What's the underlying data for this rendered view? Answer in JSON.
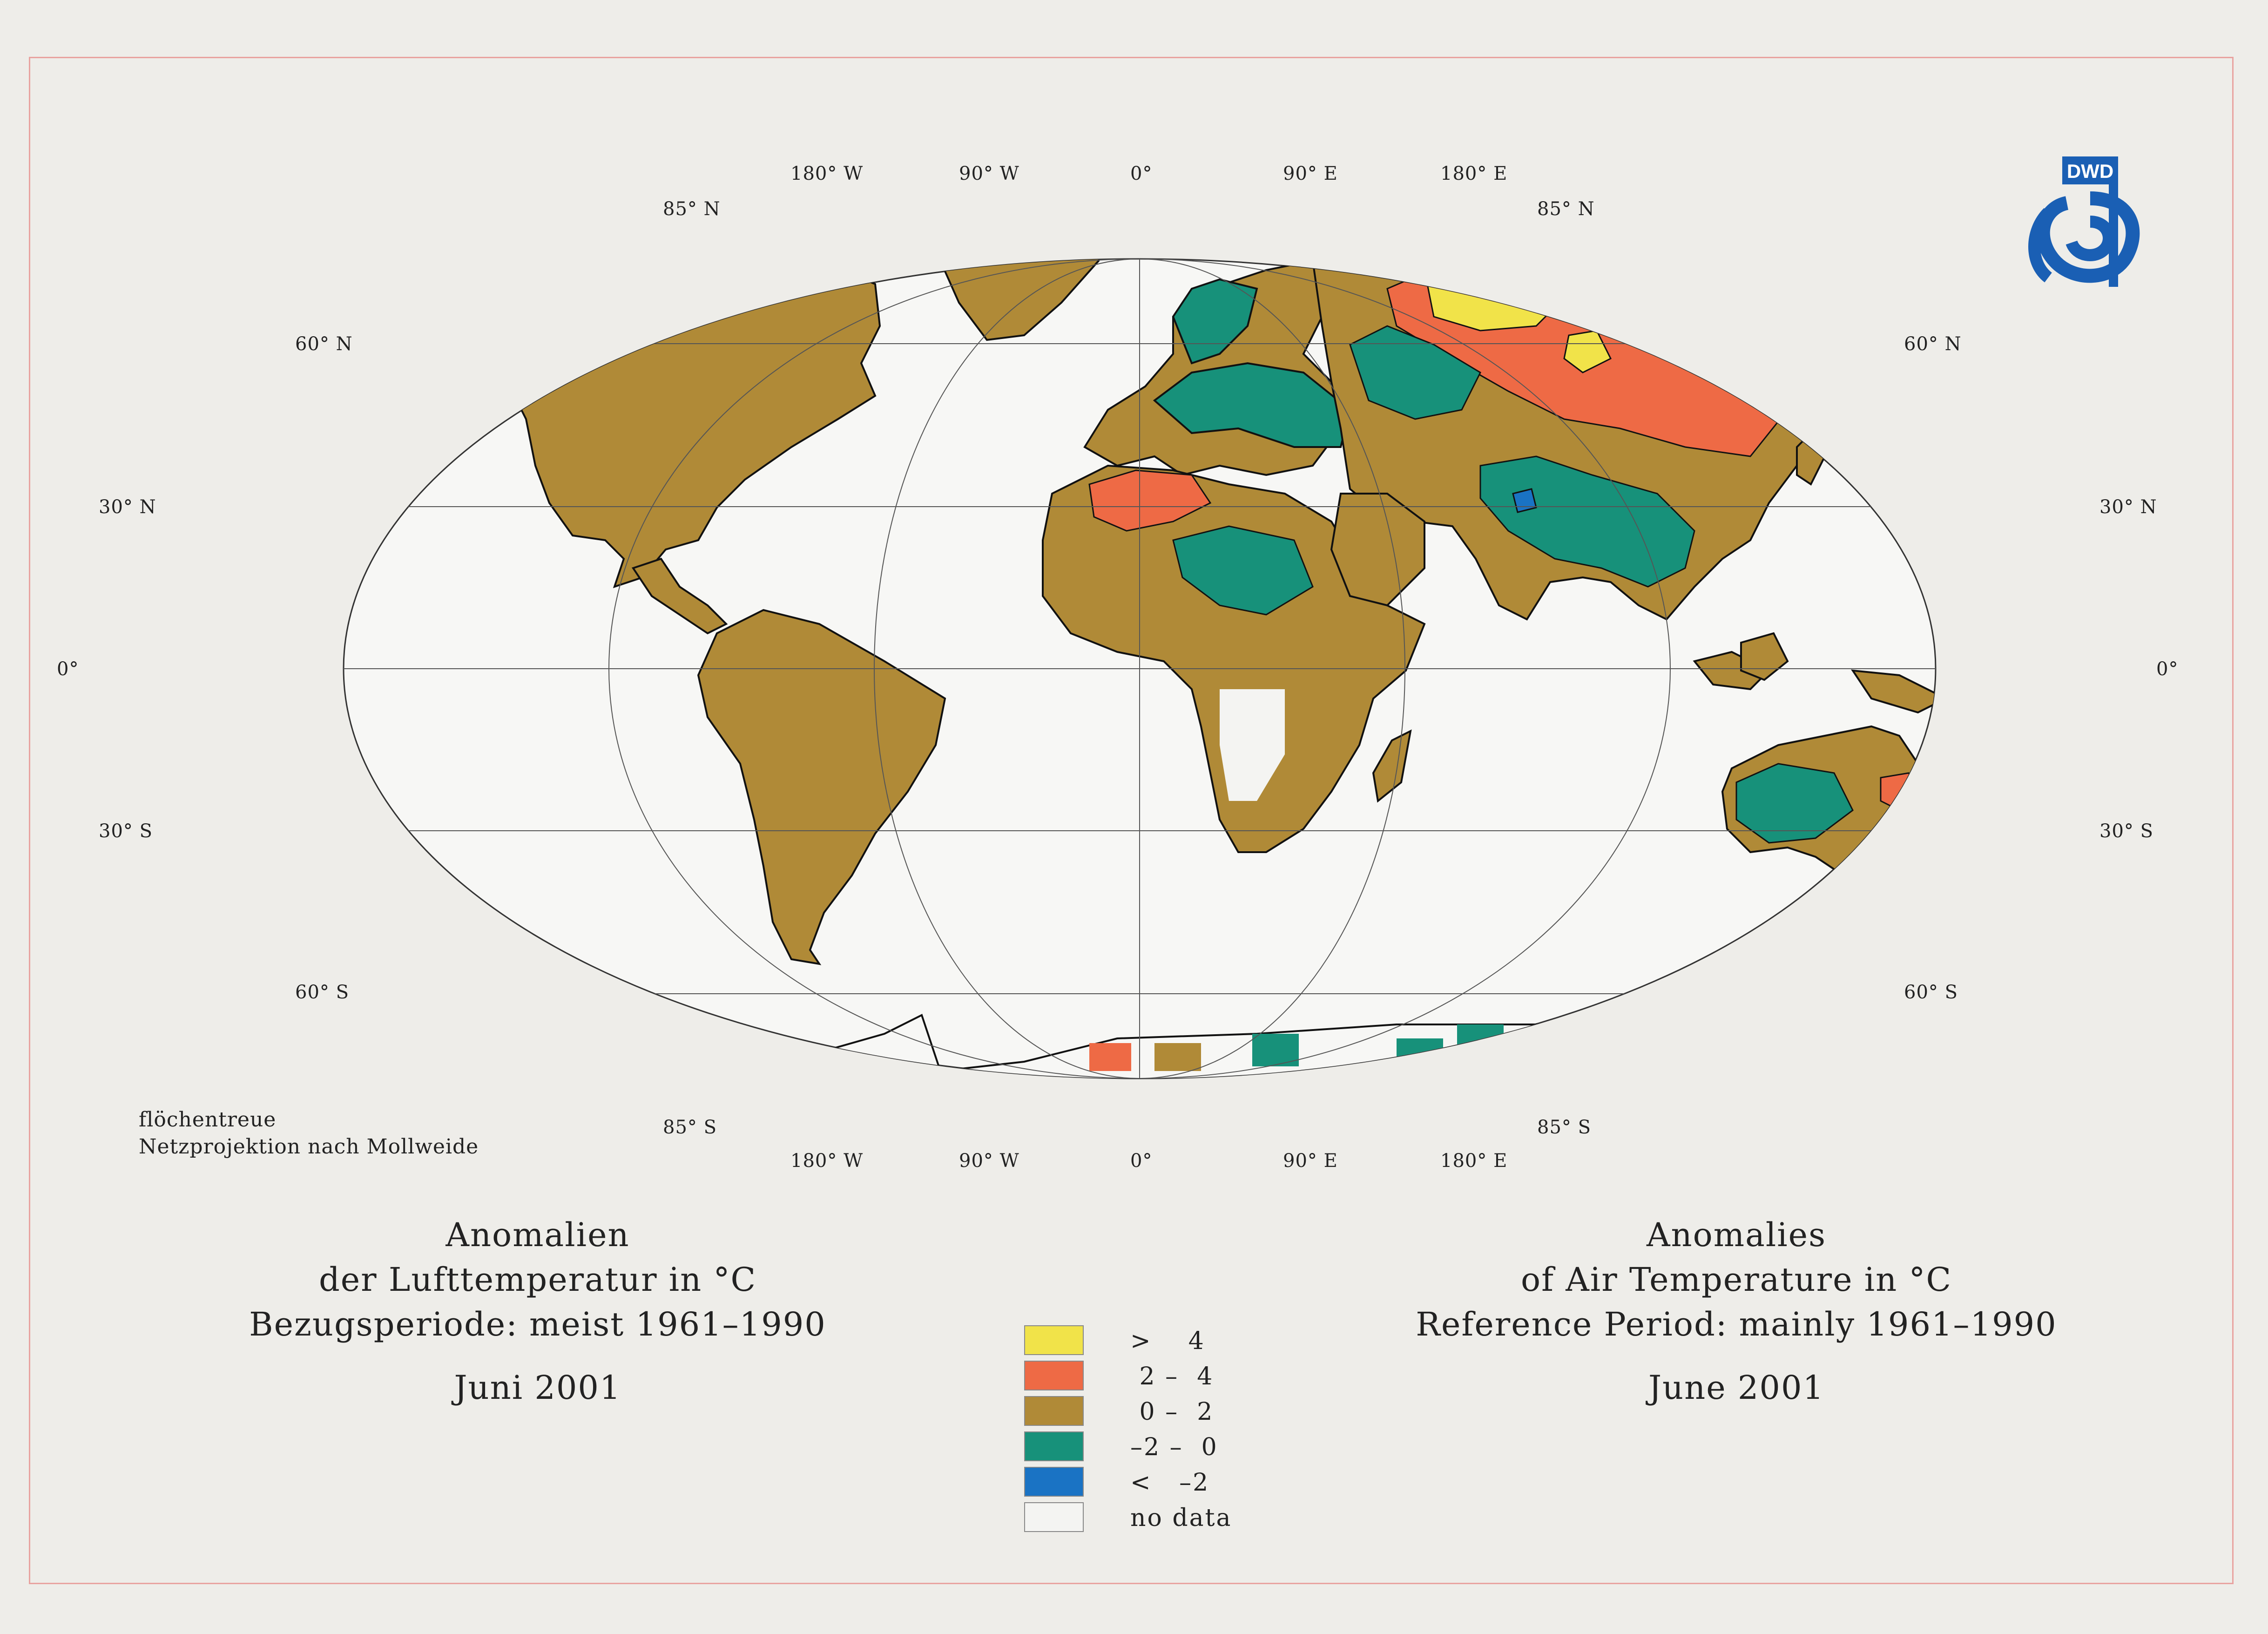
{
  "graticule_labels": {
    "longitude_top": [
      "180° W",
      "90° W",
      "0°",
      "90° E",
      "180° E"
    ],
    "longitude_bottom": [
      "180° W",
      "90° W",
      "0°",
      "90° E",
      "180° E"
    ],
    "latitude_left": [
      "85° N",
      "60° N",
      "30° N",
      "0°",
      "30° S",
      "60° S",
      "85° S"
    ],
    "latitude_right": [
      "85° N",
      "60° N",
      "30° N",
      "0°",
      "30° S",
      "60° S",
      "85° S"
    ]
  },
  "projection_note": [
    "flöchentreue",
    "Netzprojektion nach Mollweide"
  ],
  "title_de": {
    "line1": "Anomalien",
    "line2": "der Lufttemperatur in °C",
    "line3": "Bezugsperiode: meist 1961–1990",
    "date": "Juni 2001"
  },
  "title_en": {
    "line1": "Anomalies",
    "line2": "of Air Temperature in °C",
    "line3": "Reference Period: mainly 1961–1990",
    "date": "June 2001"
  },
  "legend": [
    {
      "label": ">    4",
      "color": "#f1e349"
    },
    {
      "label": " 2 –  4",
      "color": "#ee6a45"
    },
    {
      "label": " 0 –  2",
      "color": "#b08a37"
    },
    {
      "label": "–2 –  0",
      "color": "#17917a"
    },
    {
      "label": "<   –2",
      "color": "#1a73c4"
    },
    {
      "label": "no data",
      "color": "#f4f4f2"
    }
  ],
  "map_regions": [
    {
      "region": "Central Siberia",
      "class": ">    4"
    },
    {
      "region": "Western Siberia",
      "class": " 2 –  4"
    },
    {
      "region": "Central Asia",
      "class": " 2 –  4"
    },
    {
      "region": "North Africa",
      "class": " 2 –  4"
    },
    {
      "region": "Canada",
      "class": "–2 –  0"
    },
    {
      "region": "Eastern Europe",
      "class": "–2 –  0"
    },
    {
      "region": "Tibet",
      "class": "–2 –  0"
    },
    {
      "region": "South America",
      "class": " 0 –  2"
    },
    {
      "region": "Australia",
      "class": " 0 –  2"
    },
    {
      "region": "Southern Africa",
      "class": "no data"
    }
  ],
  "logo_text": "DWD",
  "colors": {
    "frame": "#e8a3a0",
    "graticule": "#555555",
    "coast": "#111111"
  }
}
